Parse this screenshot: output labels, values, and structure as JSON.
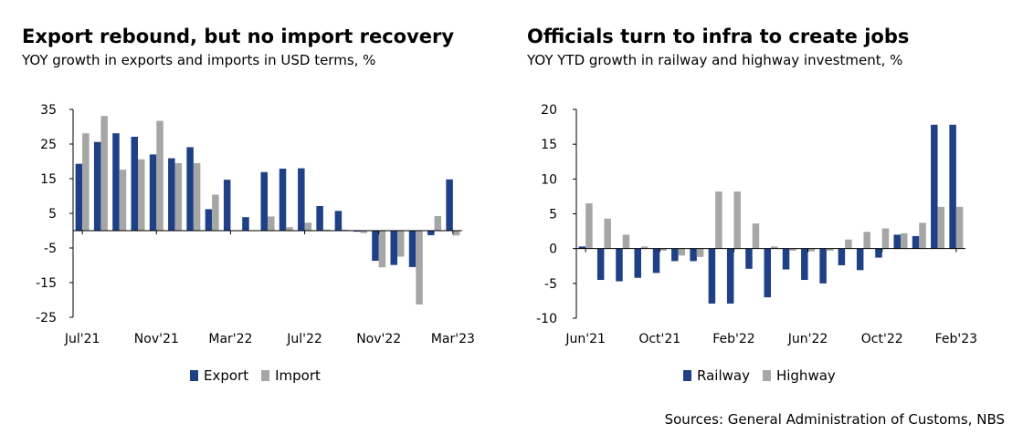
{
  "colors": {
    "series_a": "#1f3f86",
    "series_b": "#a6a6a6",
    "axis": "#000000"
  },
  "footer": {
    "source": "Sources: General Administration of Customs, NBS"
  },
  "chart_data": [
    {
      "id": "left",
      "type": "bar",
      "title": "Export rebound, but no import recovery",
      "subtitle": "YOY growth in exports and imports in USD terms, %",
      "ylim": [
        -25,
        35
      ],
      "yticks": [
        35,
        25,
        15,
        5,
        -5,
        -15,
        -25
      ],
      "xtick_labels": [
        {
          "label": "Jul'21",
          "index": 0
        },
        {
          "label": "Nov'21",
          "index": 4
        },
        {
          "label": "Mar'22",
          "index": 8
        },
        {
          "label": "Jul'22",
          "index": 12
        },
        {
          "label": "Nov'22",
          "index": 16
        },
        {
          "label": "Mar'23",
          "index": 20
        }
      ],
      "categories": [
        "Jul'21",
        "Aug'21",
        "Sep'21",
        "Oct'21",
        "Nov'21",
        "Dec'21",
        "Jan'22",
        "Feb'22",
        "Mar'22",
        "Apr'22",
        "May'22",
        "Jun'22",
        "Jul'22",
        "Aug'22",
        "Sep'22",
        "Oct'22",
        "Nov'22",
        "Dec'22",
        "Jan'23",
        "Feb'23",
        "Mar'23"
      ],
      "series": [
        {
          "name": "Export",
          "values": [
            19.3,
            25.6,
            28.1,
            27.1,
            22.0,
            20.9,
            24.1,
            6.2,
            14.7,
            3.9,
            16.9,
            17.9,
            18.0,
            7.1,
            5.7,
            -0.3,
            -8.7,
            -9.9,
            -10.5,
            -1.3,
            14.8
          ]
        },
        {
          "name": "Import",
          "values": [
            28.1,
            33.1,
            17.6,
            20.6,
            31.7,
            19.5,
            19.5,
            10.4,
            0.1,
            0.0,
            4.1,
            1.0,
            2.3,
            0.3,
            0.3,
            -0.7,
            -10.6,
            -7.5,
            -21.3,
            4.2,
            -1.4
          ]
        }
      ]
    },
    {
      "id": "right",
      "type": "bar",
      "title": "Officials turn to infra to create jobs",
      "subtitle": "YOY YTD growth in railway and highway investment, %",
      "ylim": [
        -10,
        20
      ],
      "yticks": [
        20,
        15,
        10,
        5,
        0,
        -5,
        -10
      ],
      "xtick_labels": [
        {
          "label": "Jun'21",
          "index": 0
        },
        {
          "label": "Oct'21",
          "index": 4
        },
        {
          "label": "Feb'22",
          "index": 8
        },
        {
          "label": "Jun'22",
          "index": 12
        },
        {
          "label": "Oct'22",
          "index": 16
        },
        {
          "label": "Feb'23",
          "index": 20
        }
      ],
      "categories": [
        "Jun'21",
        "Jul'21",
        "Aug'21",
        "Sep'21",
        "Oct'21",
        "Nov'21",
        "Dec'21",
        "Jan'22",
        "Feb'22",
        "Mar'22",
        "Apr'22",
        "May'22",
        "Jun'22",
        "Jul'22",
        "Aug'22",
        "Sep'22",
        "Oct'22",
        "Nov'22",
        "Dec'22",
        "Jan'23",
        "Feb'23"
      ],
      "series": [
        {
          "name": "Railway",
          "values": [
            0.3,
            -4.5,
            -4.7,
            -4.2,
            -3.5,
            -1.8,
            -1.8,
            -7.9,
            -7.9,
            -2.9,
            -7.0,
            -3.0,
            -4.5,
            -5.0,
            -2.4,
            -3.1,
            -1.3,
            2.0,
            1.8,
            17.8,
            17.8
          ]
        },
        {
          "name": "Highway",
          "values": [
            6.5,
            4.3,
            2.0,
            0.3,
            -0.3,
            -1.0,
            -1.2,
            8.2,
            8.2,
            3.6,
            0.3,
            -0.3,
            -0.4,
            -0.3,
            1.3,
            2.4,
            2.9,
            2.2,
            3.7,
            6.0,
            6.0
          ]
        }
      ]
    }
  ]
}
